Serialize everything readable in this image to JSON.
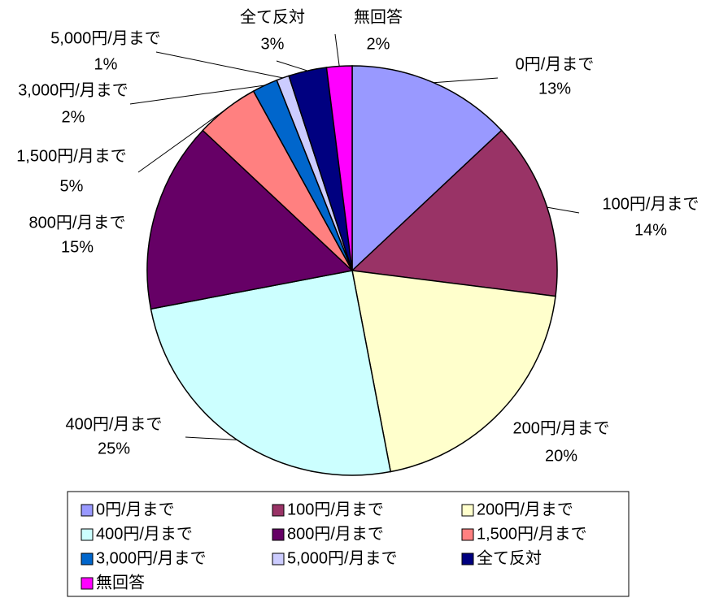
{
  "chart_data": {
    "type": "pie",
    "categories": [
      "0円/月まで",
      "100円/月まで",
      "200円/月まで",
      "400円/月まで",
      "800円/月まで",
      "1,500円/月まで",
      "3,000円/月まで",
      "5,000円/月まで",
      "全て反対",
      "無回答"
    ],
    "values": [
      13,
      14,
      20,
      25,
      15,
      5,
      2,
      1,
      3,
      2
    ],
    "value_labels": [
      "13%",
      "14%",
      "20%",
      "25%",
      "15%",
      "5%",
      "2%",
      "1%",
      "3%",
      "2%"
    ],
    "colors": [
      "#9999ff",
      "#993366",
      "#ffffcc",
      "#ccffff",
      "#660066",
      "#ff8080",
      "#0066cc",
      "#ccccff",
      "#000080",
      "#ff00ff"
    ],
    "legend": "bottom"
  }
}
